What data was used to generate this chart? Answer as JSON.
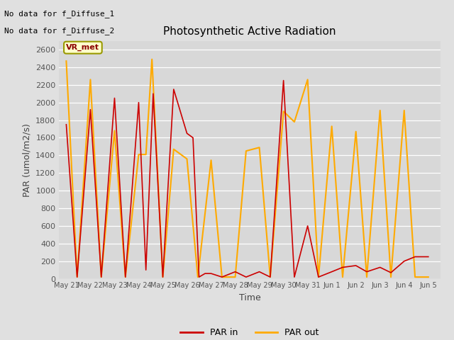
{
  "title": "Photosynthetic Active Radiation",
  "xlabel": "Time",
  "ylabel": "PAR (umol/m2/s)",
  "background_color": "#e0e0e0",
  "plot_bg_color": "#d8d8d8",
  "no_data_text": [
    "No data for f_Diffuse_1",
    "No data for f_Diffuse_2"
  ],
  "vr_met_label": "VR_met",
  "legend_labels": [
    "PAR in",
    "PAR out"
  ],
  "par_in_color": "#cc0000",
  "par_out_color": "#ffaa00",
  "x_tick_labels": [
    "May 21",
    "May 22",
    "May 23",
    "May 24",
    "May 25",
    "May 26",
    "May 27",
    "May 28",
    "May 29",
    "May 30",
    "May 31",
    "Jun 1",
    "Jun 2",
    "Jun 3",
    "Jun 4",
    "Jun 5"
  ],
  "ylim": [
    0,
    2700
  ],
  "yticks": [
    0,
    200,
    400,
    600,
    800,
    1000,
    1200,
    1400,
    1600,
    1800,
    2000,
    2200,
    2400,
    2600
  ],
  "par_in_x": [
    0.0,
    0.45,
    1.0,
    1.45,
    2.0,
    2.45,
    3.0,
    3.3,
    3.6,
    4.0,
    4.45,
    5.0,
    5.25,
    5.5,
    5.75,
    6.0,
    6.45,
    7.0,
    7.45,
    8.0,
    8.45,
    9.0,
    9.45,
    10.0,
    10.45,
    11.0,
    11.45,
    12.0,
    12.45,
    13.0,
    13.45,
    14.0,
    14.45,
    15.0
  ],
  "par_in_y": [
    1750,
    20,
    1920,
    20,
    2050,
    20,
    2000,
    100,
    2100,
    20,
    2150,
    1650,
    1600,
    20,
    60,
    60,
    20,
    80,
    20,
    80,
    20,
    2250,
    20,
    600,
    20,
    80,
    130,
    150,
    80,
    130,
    70,
    200,
    250,
    250
  ],
  "par_out_x": [
    0.0,
    0.45,
    1.0,
    1.45,
    2.0,
    2.45,
    3.0,
    3.3,
    3.55,
    4.0,
    4.45,
    5.0,
    5.45,
    6.0,
    6.45,
    7.0,
    7.45,
    8.0,
    8.45,
    9.0,
    9.45,
    10.0,
    10.45,
    11.0,
    11.45,
    12.0,
    12.45,
    13.0,
    13.45,
    14.0,
    14.45,
    15.0
  ],
  "par_out_y": [
    2470,
    20,
    2260,
    20,
    1680,
    20,
    1410,
    1410,
    2490,
    20,
    1470,
    1360,
    20,
    1345,
    20,
    20,
    1450,
    1490,
    20,
    1900,
    1780,
    2260,
    20,
    1730,
    20,
    1670,
    20,
    1910,
    20,
    1910,
    20,
    20
  ]
}
